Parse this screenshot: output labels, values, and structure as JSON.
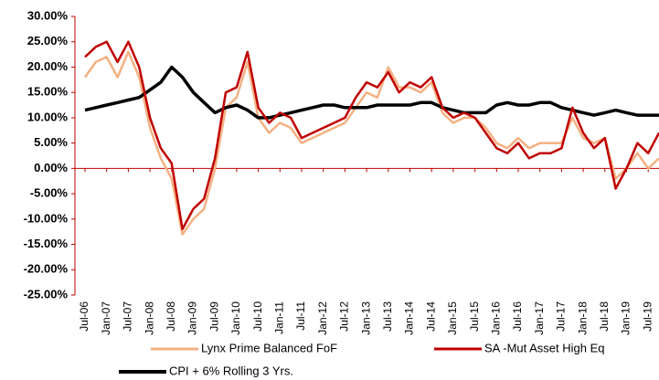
{
  "chart_data": {
    "type": "line",
    "categories": [
      "Jul-06",
      null,
      "Jan-07",
      null,
      "Jul-07",
      null,
      "Jan-08",
      null,
      "Jul-08",
      null,
      "Jan-09",
      null,
      "Jul-09",
      null,
      "Jan-10",
      null,
      "Jul-10",
      null,
      "Jan-11",
      null,
      "Jul-11",
      null,
      "Jan-12",
      null,
      "Jul-12",
      null,
      "Jan-13",
      null,
      "Jul-13",
      null,
      "Jan-14",
      null,
      "Jul-14",
      null,
      "Jan-15",
      null,
      "Jul-15",
      null,
      "Jan-16",
      null,
      "Jul-16",
      null,
      "Jan-17",
      null,
      "Jul-17",
      null,
      "Jan-18",
      null,
      "Jul-18",
      null,
      "Jan-19",
      null,
      "Jul-19",
      null
    ],
    "series": [
      {
        "name": "Lynx Prime Balanced FoF",
        "color": "#f4b183",
        "values": [
          18,
          21,
          22,
          18,
          23,
          18,
          8,
          2,
          -2,
          -13,
          -10,
          -8,
          0,
          12,
          14,
          21,
          10,
          7,
          9,
          8,
          5,
          6,
          7,
          8,
          9,
          12,
          15,
          14,
          20,
          16,
          16,
          15,
          17,
          11,
          9,
          10,
          10,
          8,
          5,
          4,
          6,
          4,
          5,
          5,
          5,
          10,
          6,
          5,
          6,
          -2,
          0,
          3,
          0,
          2
        ]
      },
      {
        "name": "SA -Mut Asset High Eq",
        "color": "#c00000",
        "values": [
          22,
          24,
          25,
          21,
          25,
          20,
          10,
          4,
          1,
          -12,
          -8,
          -6,
          2,
          15,
          16,
          23,
          12,
          9,
          11,
          10,
          6,
          7,
          8,
          9,
          10,
          14,
          17,
          16,
          19,
          15,
          17,
          16,
          18,
          12,
          10,
          11,
          10,
          7,
          4,
          3,
          5,
          2,
          3,
          3,
          4,
          12,
          7,
          4,
          6,
          -4,
          0,
          5,
          3,
          7
        ]
      },
      {
        "name": "CPI + 6% Rolling 3 Yrs.",
        "color": "#000000",
        "values": [
          11.5,
          12,
          12.5,
          13,
          13.5,
          14,
          15.5,
          17,
          20,
          18,
          15,
          13,
          11,
          12,
          12.5,
          11.5,
          10,
          10,
          10.5,
          11,
          11.5,
          12,
          12.5,
          12.5,
          12,
          12,
          12,
          12.5,
          12.5,
          12.5,
          12.5,
          13,
          13,
          12,
          11.5,
          11,
          11,
          11,
          12.5,
          13,
          12.5,
          12.5,
          13,
          13,
          12,
          11.5,
          11,
          10.5,
          11,
          11.5,
          11,
          10.5,
          10.5,
          10.5
        ]
      }
    ],
    "ylim": [
      -25,
      30
    ],
    "yticks": [
      {
        "value": -25,
        "label": "-25.00%"
      },
      {
        "value": -20,
        "label": "-20.00%"
      },
      {
        "value": -15,
        "label": "-15.00%"
      },
      {
        "value": -10,
        "label": "-10.00%"
      },
      {
        "value": -5,
        "label": "-5.00%"
      },
      {
        "value": 0,
        "label": "0.00%"
      },
      {
        "value": 5,
        "label": "5.00%"
      },
      {
        "value": 10,
        "label": "10.00%"
      },
      {
        "value": 15,
        "label": "15.00%"
      },
      {
        "value": 20,
        "label": "20.00%"
      },
      {
        "value": 25,
        "label": "25.00%"
      },
      {
        "value": 30,
        "label": "30.00%"
      }
    ],
    "grid": false,
    "legend": "bottom"
  }
}
